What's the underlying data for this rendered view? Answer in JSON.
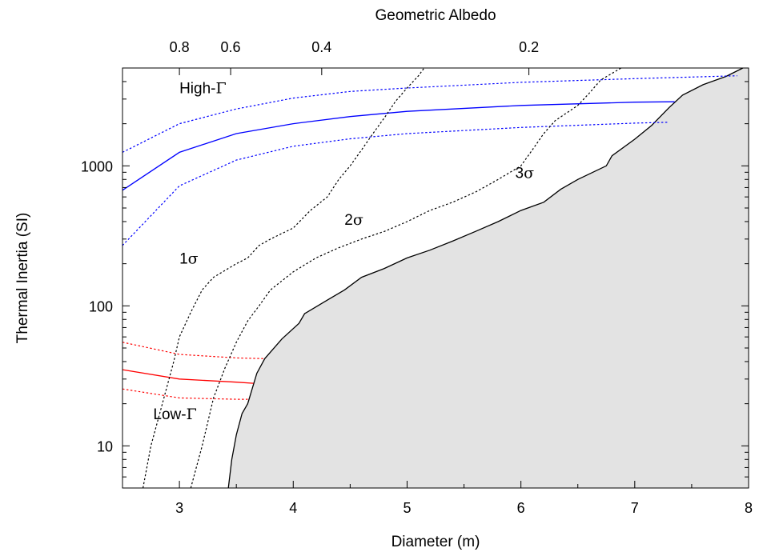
{
  "chart_data": {
    "type": "line",
    "xlabel": "Diameter (m)",
    "ylabel": "Thermal Inertia (SI)",
    "top_xlabel": "Geometric Albedo",
    "xlim": [
      2.5,
      8
    ],
    "ylim": [
      5,
      5000
    ],
    "yscale": "log",
    "x_ticks": [
      "3",
      "4",
      "5",
      "6",
      "7",
      "8"
    ],
    "y_ticks": [
      "10",
      "100",
      "1000"
    ],
    "top_ticks": [
      {
        "label": "0.8",
        "diameter": 3.0
      },
      {
        "label": "0.6",
        "diameter": 3.45
      },
      {
        "label": "0.4",
        "diameter": 4.25
      },
      {
        "label": "0.2",
        "diameter": 6.07
      }
    ],
    "grid": false,
    "excluded_region": {
      "fill": "#e3e3e3",
      "boundary": [
        [
          3.43,
          5
        ],
        [
          3.46,
          8
        ],
        [
          3.5,
          12
        ],
        [
          3.55,
          17
        ],
        [
          3.6,
          20
        ],
        [
          3.68,
          33
        ],
        [
          3.75,
          42
        ],
        [
          3.9,
          58
        ],
        [
          4.05,
          75
        ],
        [
          4.1,
          88
        ],
        [
          4.3,
          110
        ],
        [
          4.45,
          130
        ],
        [
          4.6,
          160
        ],
        [
          4.8,
          185
        ],
        [
          5.0,
          220
        ],
        [
          5.2,
          250
        ],
        [
          5.4,
          290
        ],
        [
          5.6,
          340
        ],
        [
          5.8,
          400
        ],
        [
          6.0,
          480
        ],
        [
          6.2,
          550
        ],
        [
          6.35,
          680
        ],
        [
          6.5,
          800
        ],
        [
          6.75,
          1000
        ],
        [
          6.8,
          1180
        ],
        [
          7.0,
          1550
        ],
        [
          7.15,
          1950
        ],
        [
          7.3,
          2600
        ],
        [
          7.42,
          3200
        ],
        [
          7.6,
          3800
        ],
        [
          7.8,
          4350
        ],
        [
          7.95,
          5000
        ]
      ]
    },
    "series": [
      {
        "color": "#0000ff",
        "style": "solid",
        "x": [
          2.5,
          3.0,
          3.5,
          4.0,
          4.5,
          5.0,
          6.0,
          7.0,
          7.35
        ],
        "y": [
          670,
          1250,
          1700,
          2000,
          2250,
          2450,
          2700,
          2850,
          2870
        ]
      },
      {
        "color": "#0000ff",
        "style": "dotted",
        "x": [
          2.5,
          3.0,
          3.5,
          4.0,
          4.5,
          5.0,
          6.0,
          7.0,
          7.9
        ],
        "y": [
          1250,
          2000,
          2550,
          3050,
          3400,
          3600,
          3950,
          4200,
          4400
        ]
      },
      {
        "color": "#0000ff",
        "style": "dotted",
        "x": [
          2.5,
          3.0,
          3.5,
          4.0,
          4.5,
          5.0,
          6.0,
          7.0,
          7.3
        ],
        "y": [
          270,
          720,
          1100,
          1380,
          1560,
          1700,
          1880,
          2020,
          2050
        ]
      },
      {
        "color": "#ff0000",
        "style": "solid",
        "x": [
          2.5,
          3.0,
          3.5,
          3.65
        ],
        "y": [
          35,
          30,
          28.5,
          28
        ]
      },
      {
        "color": "#ff0000",
        "style": "dotted",
        "x": [
          2.5,
          3.0,
          3.5,
          3.75
        ],
        "y": [
          55,
          45,
          42.5,
          42
        ]
      },
      {
        "color": "#ff0000",
        "style": "dotted",
        "x": [
          2.5,
          3.0,
          3.5,
          3.6
        ],
        "y": [
          25.5,
          22,
          21.5,
          21.5
        ]
      },
      {
        "color": "#000000",
        "style": "dotted",
        "x": [
          2.68,
          2.75,
          2.85,
          2.95,
          3.0,
          3.1,
          3.2,
          3.3,
          3.5,
          3.6,
          3.7,
          3.8,
          4.0,
          4.15,
          4.3,
          4.4,
          4.5,
          4.6,
          4.7,
          4.8,
          4.9,
          5.0,
          5.1,
          5.15
        ],
        "y": [
          5,
          10,
          20,
          40,
          60,
          90,
          130,
          160,
          200,
          220,
          270,
          300,
          360,
          480,
          600,
          800,
          1000,
          1300,
          1700,
          2200,
          2900,
          3600,
          4400,
          5000
        ]
      },
      {
        "color": "#000000",
        "style": "dotted",
        "x": [
          3.1,
          3.2,
          3.3,
          3.4,
          3.5,
          3.6,
          3.7,
          3.8,
          4.0,
          4.2,
          4.4,
          4.6,
          4.8,
          5.0,
          5.2,
          5.4,
          5.6,
          5.8,
          6.0,
          6.1,
          6.2,
          6.3,
          6.5,
          6.6,
          6.7,
          6.88
        ],
        "y": [
          5,
          10,
          22,
          36,
          55,
          78,
          100,
          130,
          175,
          220,
          260,
          300,
          340,
          400,
          480,
          550,
          650,
          800,
          1000,
          1300,
          1700,
          2100,
          2700,
          3300,
          4100,
          5000
        ]
      }
    ],
    "annotations": [
      {
        "id": "high",
        "text": "High-",
        "symbol": "Γ",
        "x": 3.0,
        "y": 3300
      },
      {
        "id": "low",
        "text": "Low-",
        "symbol": "Γ",
        "x": 2.77,
        "y": 15.5
      },
      {
        "id": "s1",
        "text": "1",
        "symbol": "σ",
        "x": 3.0,
        "y": 200
      },
      {
        "id": "s2",
        "text": "2",
        "symbol": "σ",
        "x": 4.45,
        "y": 380
      },
      {
        "id": "s3",
        "text": "3",
        "symbol": "σ",
        "x": 5.95,
        "y": 820
      }
    ]
  }
}
